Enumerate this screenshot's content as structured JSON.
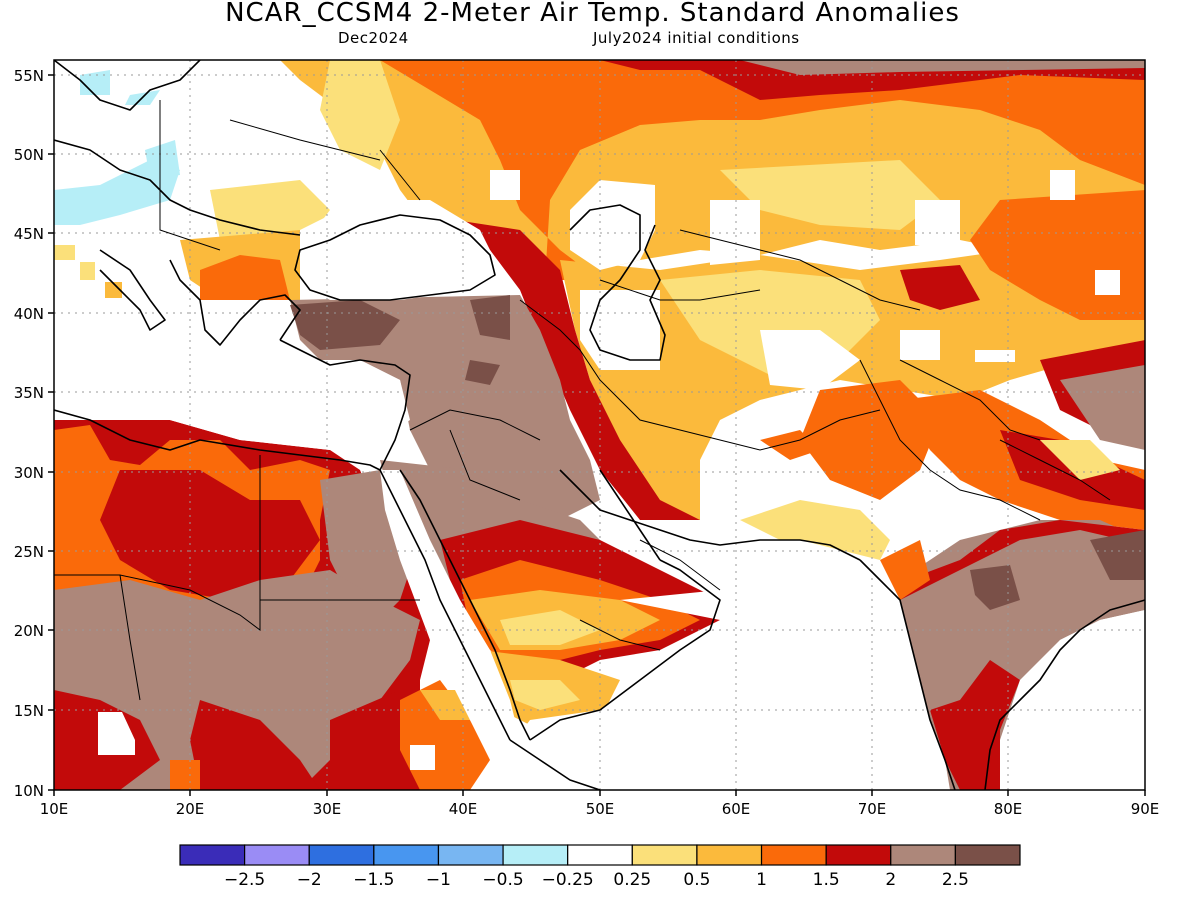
{
  "header": {
    "title": "NCAR_CCSM4 2-Meter Air Temp. Standard Anomalies",
    "valid_month": "Dec2024",
    "init": "July2024 initial conditions"
  },
  "axes": {
    "lon_labels": [
      "10E",
      "20E",
      "30E",
      "40E",
      "50E",
      "60E",
      "70E",
      "80E",
      "90E"
    ],
    "lat_labels": [
      "10N",
      "15N",
      "20N",
      "25N",
      "30N",
      "35N",
      "40N",
      "45N",
      "50N",
      "55N"
    ]
  },
  "colorbar": {
    "colors": [
      "#3a2cb8",
      "#9a8cf5",
      "#2e6fe0",
      "#4896f0",
      "#78b6f2",
      "#b6eef7",
      "#ffffff",
      "#fbe07a",
      "#fbba3c",
      "#fa6a0a",
      "#c20a0a",
      "#ad877a",
      "#7a5048"
    ],
    "labels": [
      "−2.5",
      "−2",
      "−1.5",
      "−1",
      "−0.5",
      "−0.25",
      "0.25",
      "0.5",
      "1",
      "1.5",
      "2",
      "2.5"
    ]
  },
  "legend_colors": {
    "white": "#ffffff",
    "lightyellow": "#fbe07a",
    "yellow": "#fbba3c",
    "orange": "#fa6a0a",
    "red": "#c20a0a",
    "brown": "#ad877a",
    "darkbrown": "#7a5048",
    "lightblue": "#b6eef7"
  }
}
